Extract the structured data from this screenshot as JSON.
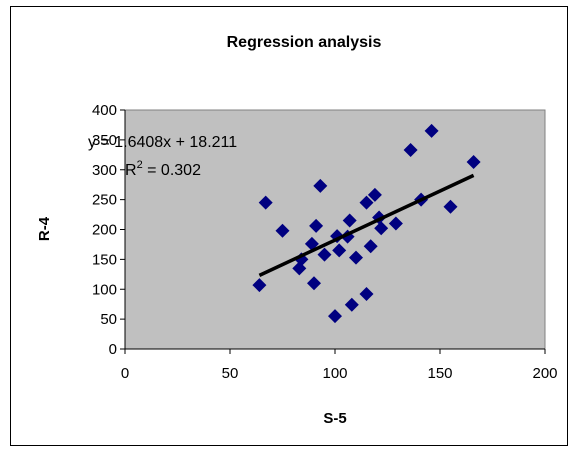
{
  "chart_data": {
    "type": "scatter",
    "title": "Regression analysis",
    "xlabel": "S-5",
    "ylabel": "R-4",
    "xlim": [
      0,
      200
    ],
    "ylim": [
      0,
      400
    ],
    "x_ticks": [
      0,
      50,
      100,
      150,
      200
    ],
    "y_ticks": [
      0,
      50,
      100,
      150,
      200,
      250,
      300,
      350,
      400
    ],
    "plot_area_color": "#c0c0c0",
    "marker_color": "#000080",
    "marker_shape": "diamond",
    "grid": false,
    "legend": "none",
    "points": [
      [
        64,
        107
      ],
      [
        67,
        245
      ],
      [
        75,
        198
      ],
      [
        83,
        135
      ],
      [
        84,
        150
      ],
      [
        89,
        176
      ],
      [
        90,
        110
      ],
      [
        91,
        206
      ],
      [
        93,
        273
      ],
      [
        95,
        158
      ],
      [
        100,
        55
      ],
      [
        101,
        189
      ],
      [
        102,
        165
      ],
      [
        106,
        188
      ],
      [
        107,
        215
      ],
      [
        108,
        74
      ],
      [
        110,
        153
      ],
      [
        115,
        92
      ],
      [
        115,
        245
      ],
      [
        117,
        172
      ],
      [
        119,
        258
      ],
      [
        121,
        220
      ],
      [
        122,
        202
      ],
      [
        129,
        210
      ],
      [
        136,
        333
      ],
      [
        141,
        250
      ],
      [
        146,
        365
      ],
      [
        155,
        238
      ],
      [
        166,
        313
      ]
    ],
    "trendline": {
      "slope": 1.6408,
      "intercept": 18.211,
      "x_range": [
        64,
        166
      ],
      "color": "#000000"
    },
    "annotations": {
      "equation": "y = 1.6408x + 18.211",
      "r_squared_prefix": "R",
      "r_squared_sup": "2",
      "r_squared_value": " = 0.302"
    }
  }
}
